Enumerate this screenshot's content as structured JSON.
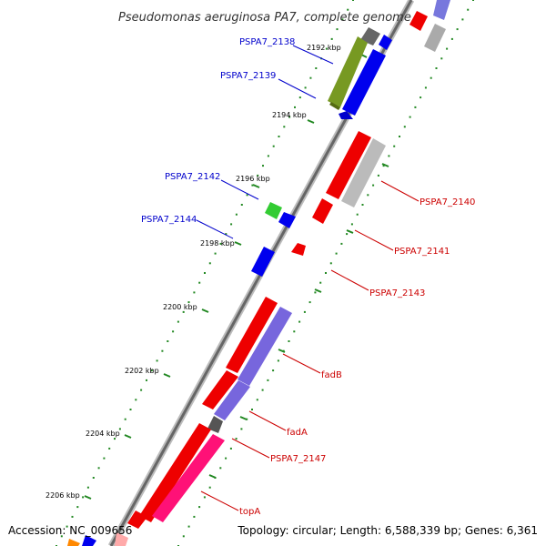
{
  "title": "Pseudomonas aeruginosa PA7, complete genome",
  "footer": {
    "accession": "Accession: NC_009656",
    "topology": "Topology: circular; Length: 6,588,339 bp; Genes: 6,361"
  },
  "colors": {
    "forward_label": "#cc0000",
    "reverse_label": "#0000cc",
    "backbone": "#888888",
    "tick": "#228822"
  },
  "ticks": [
    {
      "label": "2192 kbp"
    },
    {
      "label": "2194 kbp"
    },
    {
      "label": "2196 kbp"
    },
    {
      "label": "2198 kbp"
    },
    {
      "label": "2200 kbp"
    },
    {
      "label": "2202 kbp"
    },
    {
      "label": "2204 kbp"
    },
    {
      "label": "2206 kbp"
    }
  ],
  "genes": [
    {
      "label": "PSPA7_2138",
      "strand": "reverse"
    },
    {
      "label": "PSPA7_2139",
      "strand": "reverse"
    },
    {
      "label": "PSPA7_2142",
      "strand": "reverse"
    },
    {
      "label": "PSPA7_2144",
      "strand": "reverse"
    },
    {
      "label": "PSPA7_2140",
      "strand": "forward"
    },
    {
      "label": "PSPA7_2141",
      "strand": "forward"
    },
    {
      "label": "PSPA7_2143",
      "strand": "forward"
    },
    {
      "label": "fadB",
      "strand": "forward"
    },
    {
      "label": "fadA",
      "strand": "forward"
    },
    {
      "label": "PSPA7_2147",
      "strand": "forward"
    },
    {
      "label": "topA",
      "strand": "forward"
    }
  ]
}
